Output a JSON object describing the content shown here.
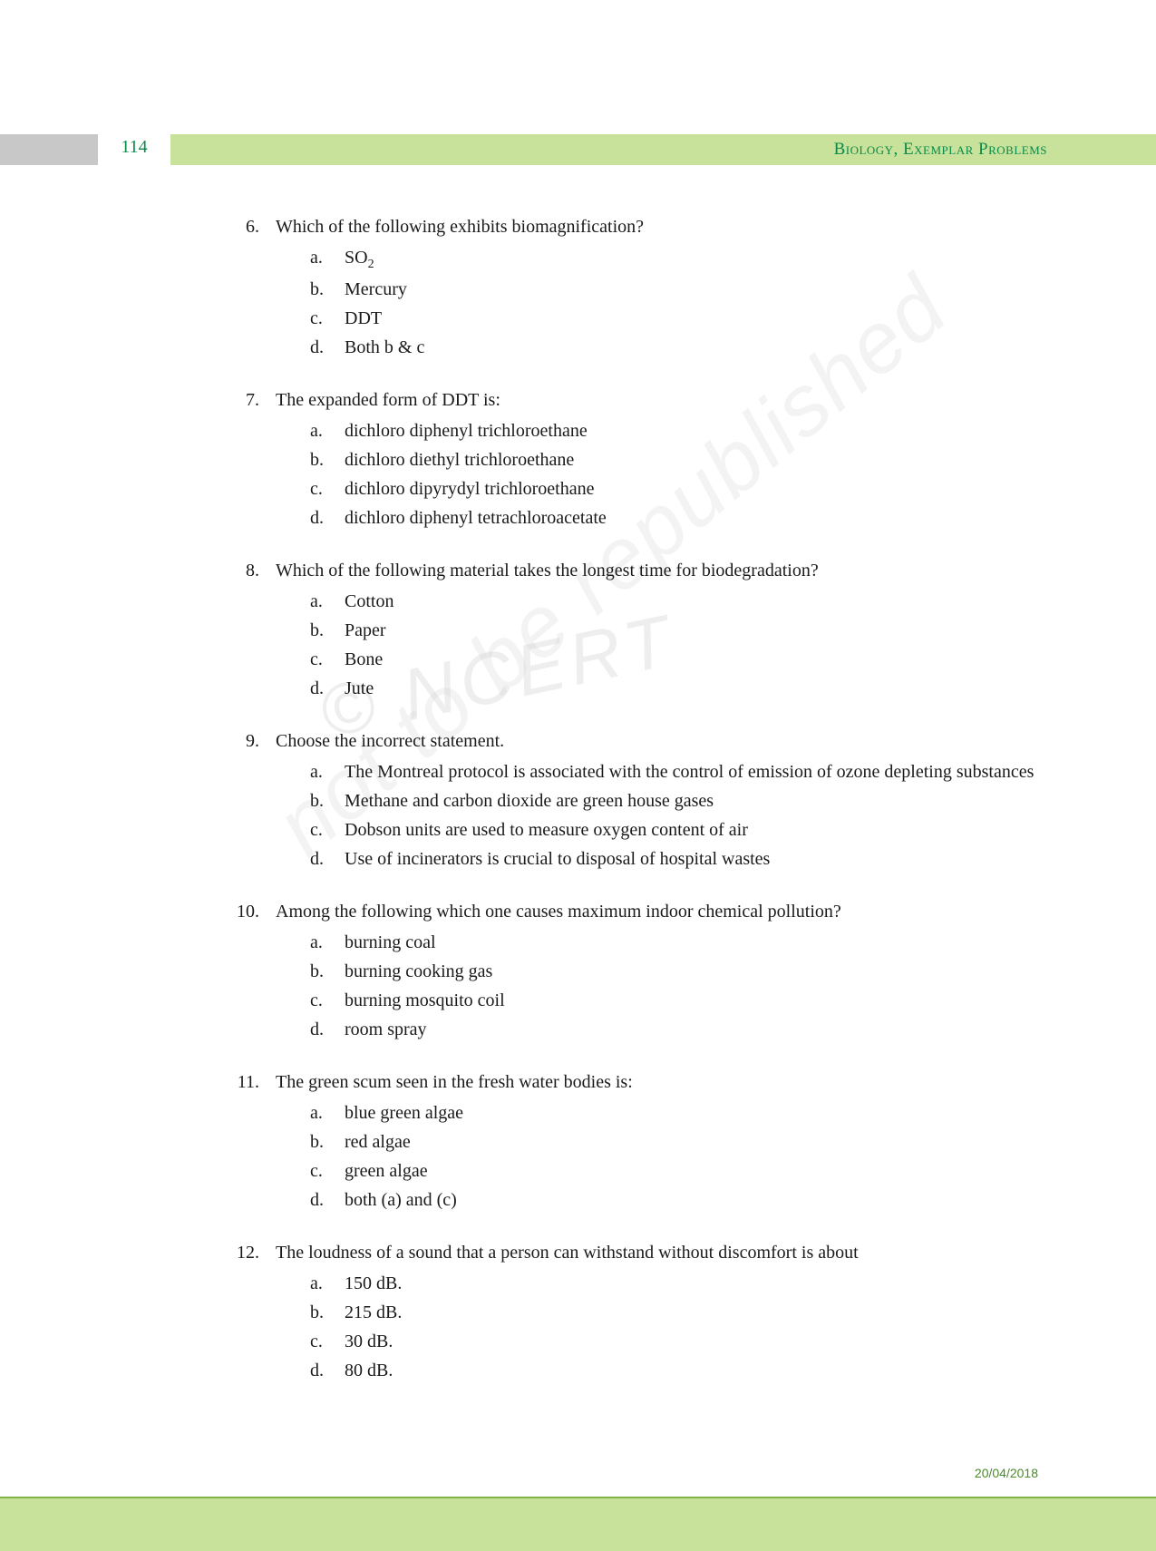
{
  "header": {
    "page_number": "114",
    "title": "Biology, Exemplar Problems"
  },
  "watermarks": {
    "ncert": "© NCERT",
    "republished": "not to be republished"
  },
  "questions": [
    {
      "num": "6.",
      "text": "Which of the following exhibits biomagnification?",
      "options": [
        {
          "letter": "a.",
          "text": "SO",
          "sub": "2"
        },
        {
          "letter": "b.",
          "text": "Mercury"
        },
        {
          "letter": "c.",
          "text": "DDT"
        },
        {
          "letter": "d.",
          "text": "Both b & c"
        }
      ]
    },
    {
      "num": "7.",
      "text": "The expanded form of DDT is:",
      "options": [
        {
          "letter": "a.",
          "text": "dichloro diphenyl trichloroethane"
        },
        {
          "letter": "b.",
          "text": "dichloro diethyl trichloroethane"
        },
        {
          "letter": "c.",
          "text": "dichloro dipyrydyl trichloroethane"
        },
        {
          "letter": "d.",
          "text": "dichloro diphenyl tetrachloroacetate"
        }
      ]
    },
    {
      "num": "8.",
      "text": "Which of the following material takes the longest time for biodegradation?",
      "options": [
        {
          "letter": "a.",
          "text": "Cotton"
        },
        {
          "letter": "b.",
          "text": "Paper"
        },
        {
          "letter": "c.",
          "text": "Bone"
        },
        {
          "letter": "d.",
          "text": "Jute"
        }
      ]
    },
    {
      "num": "9.",
      "text": "Choose the incorrect statement.",
      "options": [
        {
          "letter": "a.",
          "text": "The Montreal protocol is associated with the control of emission of ozone depleting substances"
        },
        {
          "letter": "b.",
          "text": "Methane and carbon dioxide are green house gases"
        },
        {
          "letter": "c.",
          "text": "Dobson units are used to measure oxygen content of air"
        },
        {
          "letter": "d.",
          "text": "Use of incinerators is crucial to disposal of hospital wastes"
        }
      ]
    },
    {
      "num": "10.",
      "text": "Among the following which one causes maximum indoor chemical pollution?",
      "options": [
        {
          "letter": "a.",
          "text": "burning coal"
        },
        {
          "letter": "b.",
          "text": "burning cooking gas"
        },
        {
          "letter": "c.",
          "text": "burning mosquito coil"
        },
        {
          "letter": "d.",
          "text": "room spray"
        }
      ]
    },
    {
      "num": "11.",
      "text": "The green scum seen in the fresh water bodies is:",
      "options": [
        {
          "letter": "a.",
          "text": "blue green algae"
        },
        {
          "letter": "b.",
          "text": "red algae"
        },
        {
          "letter": "c.",
          "text": "green algae"
        },
        {
          "letter": "d.",
          "text": "both (a) and (c)"
        }
      ]
    },
    {
      "num": "12.",
      "text": "The loudness of a sound that a person can withstand without discomfort is about",
      "options": [
        {
          "letter": "a.",
          "text": "150 dB."
        },
        {
          "letter": "b.",
          "text": "215 dB."
        },
        {
          "letter": "c.",
          "text": "30   dB."
        },
        {
          "letter": "d.",
          "text": "80   dB."
        }
      ]
    }
  ],
  "footer": {
    "date": "20/04/2018"
  },
  "colors": {
    "green_text": "#0a8a4a",
    "band_green": "#c8e29b",
    "band_gray": "#c8c8c8",
    "footer_border": "#7fb548",
    "watermark": "#d0d0d0"
  },
  "typography": {
    "body_fontsize": 20,
    "header_fontsize": 19,
    "footer_fontsize": 14
  }
}
